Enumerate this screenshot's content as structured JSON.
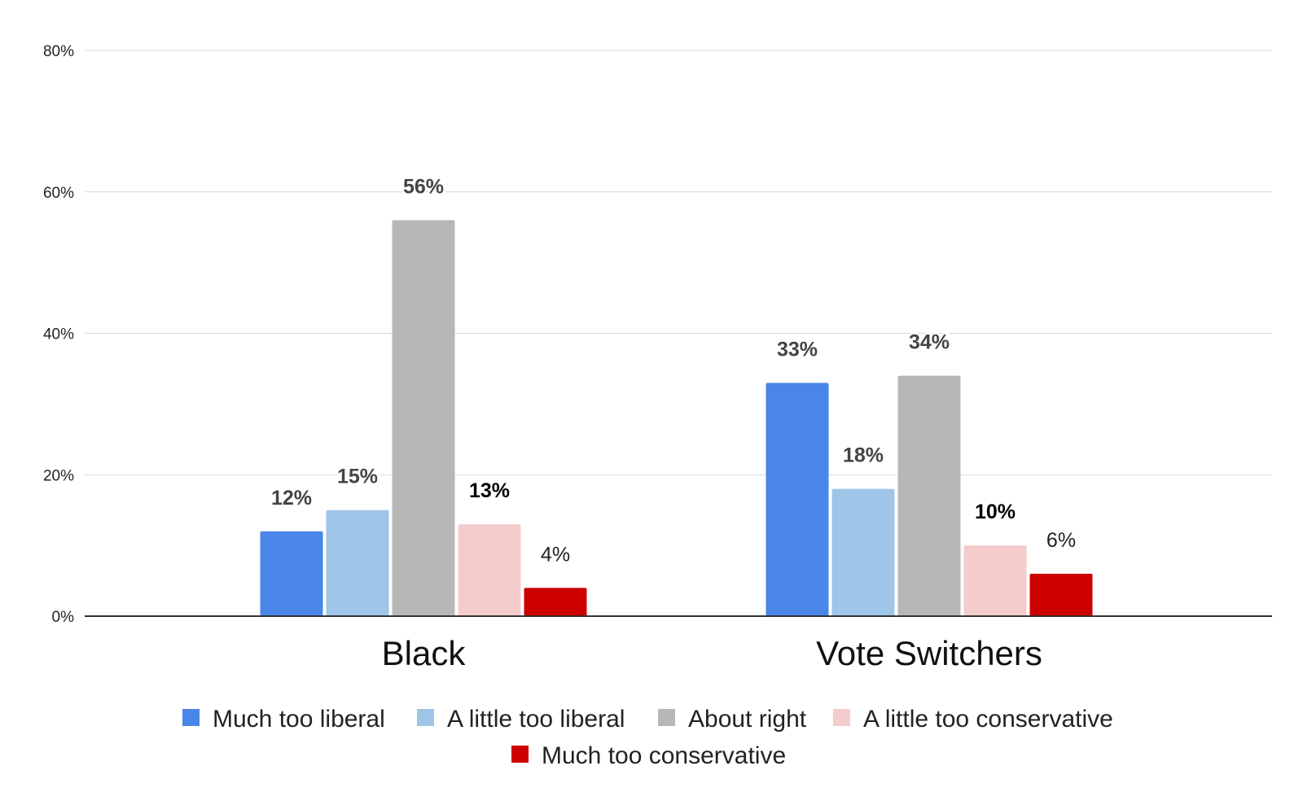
{
  "chart_data": {
    "type": "bar",
    "categories": [
      "Black",
      "Vote Switchers"
    ],
    "series": [
      {
        "name": "Much too liberal",
        "color": "#4a86e8",
        "values": [
          12,
          33
        ],
        "labels": [
          "12%",
          "33%"
        ]
      },
      {
        "name": "A little too liberal",
        "color": "#9fc5e8",
        "values": [
          15,
          18
        ],
        "labels": [
          "15%",
          "18%"
        ]
      },
      {
        "name": "About right",
        "color": "#b7b7b7",
        "values": [
          56,
          34
        ],
        "labels": [
          "56%",
          "34%"
        ]
      },
      {
        "name": "A little too conservative",
        "color": "#f4cccc",
        "values": [
          13,
          10
        ],
        "labels": [
          "13%",
          "10%"
        ]
      },
      {
        "name": "Much too conservative",
        "color": "#cc0000",
        "values": [
          4,
          6
        ],
        "labels": [
          "4%",
          "6%"
        ]
      }
    ],
    "ylim": [
      0,
      80
    ],
    "yticks": [
      "0%",
      "20%",
      "40%",
      "60%",
      "80%"
    ],
    "ytick_values": [
      0,
      20,
      40,
      60,
      80
    ],
    "grid": true,
    "legend": "bottom"
  }
}
